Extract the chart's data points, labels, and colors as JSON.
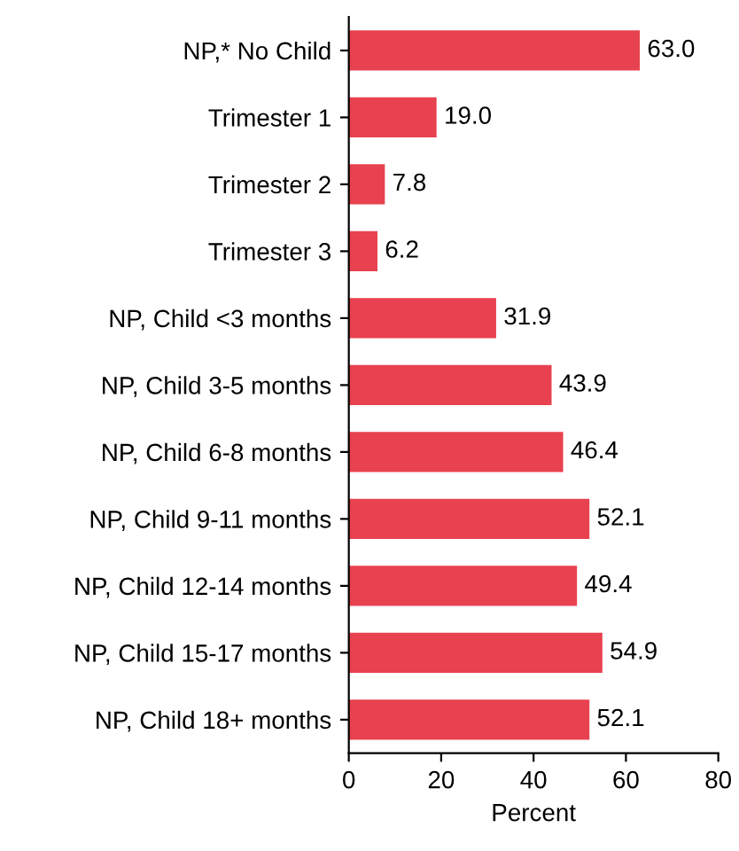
{
  "chart_data": {
    "type": "bar",
    "orientation": "horizontal",
    "xlabel": "Percent",
    "categories": [
      "NP,* No Child",
      "Trimester 1",
      "Trimester 2",
      "Trimester 3",
      "NP, Child <3 months",
      "NP, Child 3-5 months",
      "NP, Child 6-8 months",
      "NP, Child 9-11 months",
      "NP, Child 12-14 months",
      "NP, Child 15-17 months",
      "NP, Child 18+ months"
    ],
    "values": [
      63.0,
      19.0,
      7.8,
      6.2,
      31.9,
      43.9,
      46.4,
      52.1,
      49.4,
      54.9,
      52.1
    ],
    "value_labels": [
      "63.0",
      "19.0",
      "7.8",
      "6.2",
      "31.9",
      "43.9",
      "46.4",
      "52.1",
      "49.4",
      "54.9",
      "52.1"
    ],
    "color": "#e8414f",
    "xlim": [
      0,
      80
    ],
    "xticks": [
      0,
      20,
      40,
      60,
      80
    ],
    "grid": false,
    "legend": false
  }
}
